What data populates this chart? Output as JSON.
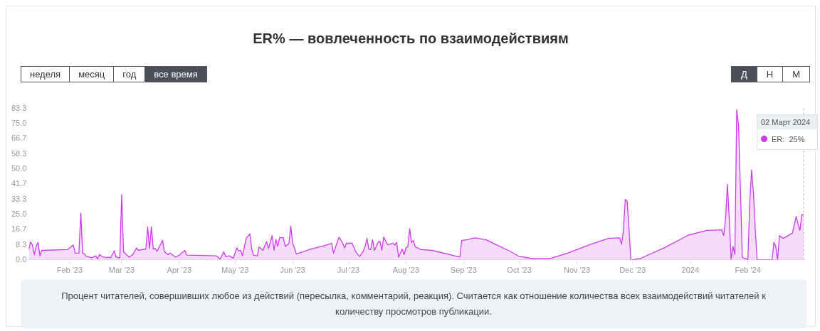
{
  "chart_data": {
    "type": "area",
    "title": "ER% — вовлеченность по взаимодействиям",
    "annotations": [
      "неделя",
      "месяц",
      "год",
      "все время",
      "Д",
      "Н",
      "М",
      "Процент читателей, совершивших любое из действий (пересылка, комментарий, реакция). Считается как отношение количества всех взаимодействий читателей к количеству просмотров публикации.",
      "02 Март 2024\nER:  25%"
    ],
    "series": [
      {
        "color": "#cc3bea",
        "x": [
          "2023-01-10",
          "2023-01-11",
          "2023-01-12",
          "2023-01-13",
          "2023-01-14",
          "2023-01-15",
          "2023-01-16",
          "2023-01-17",
          "2023-01-31",
          "2023-02-02",
          "2023-02-03",
          "2023-02-04",
          "2023-02-06",
          "2023-02-07",
          "2023-02-08",
          "2023-02-09",
          "2023-02-10",
          "2023-02-13",
          "2023-02-15",
          "2023-02-16",
          "2023-02-17",
          "2023-02-19",
          "2023-02-21",
          "2023-02-22",
          "2023-02-23",
          "2023-02-25",
          "2023-02-26",
          "2023-02-28",
          "2023-03-01",
          "2023-03-02",
          "2023-03-05",
          "2023-03-07",
          "2023-03-09",
          "2023-03-10",
          "2023-03-14",
          "2023-03-15",
          "2023-03-16",
          "2023-03-17",
          "2023-03-18",
          "2023-03-19",
          "2023-03-20",
          "2023-03-21",
          "2023-03-23",
          "2023-03-24",
          "2023-03-26",
          "2023-03-27",
          "2023-03-30",
          "2023-04-01",
          "2023-04-04",
          "2023-04-05",
          "2023-04-21",
          "2023-04-23",
          "2023-04-25",
          "2023-04-26",
          "2023-04-28",
          "2023-04-30",
          "2023-05-02",
          "2023-05-03",
          "2023-05-04",
          "2023-05-05",
          "2023-05-07",
          "2023-05-09",
          "2023-05-10",
          "2023-05-11",
          "2023-05-13",
          "2023-05-14",
          "2023-05-16",
          "2023-05-18",
          "2023-05-19",
          "2023-05-20",
          "2023-05-21",
          "2023-05-22",
          "2023-05-23",
          "2023-05-24",
          "2023-05-25",
          "2023-05-27",
          "2023-05-28",
          "2023-05-30",
          "2023-05-31",
          "2023-06-01",
          "2023-06-02",
          "2023-06-03",
          "2023-06-10",
          "2023-06-19",
          "2023-06-22",
          "2023-06-23",
          "2023-06-26",
          "2023-06-28",
          "2023-06-29",
          "2023-06-30",
          "2023-07-03",
          "2023-07-05",
          "2023-07-07",
          "2023-07-09",
          "2023-07-10",
          "2023-07-11",
          "2023-07-12",
          "2023-07-13",
          "2023-07-14",
          "2023-07-15",
          "2023-07-17",
          "2023-07-18",
          "2023-07-19",
          "2023-07-20",
          "2023-07-22",
          "2023-07-23",
          "2023-07-25",
          "2023-07-26",
          "2023-07-27",
          "2023-07-28",
          "2023-07-30",
          "2023-07-31",
          "2023-08-01",
          "2023-08-02",
          "2023-08-03",
          "2023-08-04",
          "2023-08-05",
          "2023-08-06",
          "2023-08-08",
          "2023-08-09",
          "2023-08-15",
          "2023-08-30",
          "2023-08-31",
          "2023-09-03",
          "2023-09-07",
          "2023-09-13",
          "2023-09-19",
          "2023-09-26",
          "2023-10-01",
          "2023-10-09",
          "2023-10-17",
          "2023-10-27",
          "2023-11-09",
          "2023-11-18",
          "2023-11-24",
          "2023-11-25",
          "2023-11-26",
          "2023-11-27",
          "2023-11-28",
          "2023-11-29",
          "2023-11-30",
          "2023-12-01",
          "2023-12-05",
          "2023-12-18",
          "2023-12-31",
          "2024-01-10",
          "2024-01-18",
          "2024-01-19",
          "2024-01-20",
          "2024-01-21",
          "2024-01-22",
          "2024-01-23",
          "2024-01-24",
          "2024-01-25",
          "2024-01-26",
          "2024-01-27",
          "2024-01-28",
          "2024-01-29",
          "2024-01-30",
          "2024-01-31",
          "2024-02-01",
          "2024-02-02",
          "2024-02-03",
          "2024-02-04",
          "2024-02-05",
          "2024-02-06",
          "2024-02-14",
          "2024-02-15",
          "2024-02-16",
          "2024-02-17",
          "2024-02-18",
          "2024-02-20",
          "2024-02-25",
          "2024-02-27",
          "2024-02-28",
          "2024-02-29",
          "2024-03-01",
          "2024-03-02"
        ],
        "values": [
          5.6,
          9.9,
          8.1,
          2.9,
          7.4,
          9.6,
          2.2,
          5.2,
          5.6,
          7.4,
          8.1,
          3.7,
          3.7,
          25.8,
          3.7,
          3.3,
          1.8,
          1.2,
          2.2,
          0.4,
          2.9,
          1.5,
          1.2,
          1.5,
          1.0,
          4.9,
          1.5,
          1.0,
          35.8,
          4.4,
          1.5,
          2.9,
          6.5,
          5.2,
          5.9,
          18.1,
          6.2,
          18.1,
          5.9,
          6.3,
          4.7,
          6.6,
          10.8,
          4.4,
          2.9,
          3.7,
          1.5,
          2.6,
          5.2,
          2.6,
          2.2,
          0.4,
          4.4,
          1.8,
          2.2,
          0.9,
          6.6,
          4.9,
          5.2,
          2.2,
          11.8,
          14.3,
          5.9,
          2.5,
          2.2,
          7.1,
          5.2,
          10.0,
          6.2,
          9.6,
          13.3,
          5.2,
          11.3,
          7.4,
          12.2,
          12.2,
          7.4,
          8.8,
          18.6,
          9.1,
          6.6,
          3.2,
          5.6,
          8.1,
          9.1,
          3.7,
          12.5,
          9.1,
          6.6,
          9.1,
          9.1,
          4.4,
          1.8,
          4.7,
          7.4,
          11.8,
          5.9,
          5.6,
          11.1,
          5.2,
          9.6,
          10.3,
          5.2,
          12.5,
          8.5,
          8.5,
          9.1,
          8.1,
          9.6,
          1.5,
          5.9,
          2.9,
          6.6,
          7.4,
          17.2,
          9.6,
          10.6,
          7.1,
          6.2,
          5.6,
          5.2,
          1.5,
          10.6,
          11.1,
          12.1,
          11.1,
          8.1,
          4.7,
          1.8,
          0.6,
          0.6,
          3.7,
          8.8,
          11.8,
          12.1,
          8.5,
          16.2,
          33.2,
          32.4,
          17.7,
          0,
          0,
          0.7,
          6.6,
          13.6,
          16.2,
          16.5,
          13.3,
          22.8,
          41.6,
          22.1,
          0.3,
          7.4,
          2.9,
          82.5,
          73.7,
          38.3,
          1.5,
          0.7,
          0.7,
          0,
          31.0,
          49.4,
          36.9,
          16.2,
          0,
          0,
          9.6,
          7.4,
          0,
          13.3,
          11.8,
          14.7,
          23.9,
          19.5,
          16.2,
          24.8,
          25
        ]
      }
    ],
    "xlim": [
      "2023-01-10",
      "2024-03-02"
    ],
    "xticks": [
      {
        "value": "2023-02-01",
        "label": "Feb '23"
      },
      {
        "value": "2023-03-01",
        "label": "Mar '23"
      },
      {
        "value": "2023-04-01",
        "label": "Apr '23"
      },
      {
        "value": "2023-05-01",
        "label": "May '23"
      },
      {
        "value": "2023-06-01",
        "label": "Jun '23"
      },
      {
        "value": "2023-07-01",
        "label": "Jul '23"
      },
      {
        "value": "2023-08-01",
        "label": "Aug '23"
      },
      {
        "value": "2023-09-01",
        "label": "Sep '23"
      },
      {
        "value": "2023-10-01",
        "label": "Oct '23"
      },
      {
        "value": "2023-11-01",
        "label": "Nov '23"
      },
      {
        "value": "2023-12-01",
        "label": "Dec '23"
      },
      {
        "value": "2024-01-01",
        "label": "2024"
      },
      {
        "value": "2024-02-01",
        "label": "Feb '24"
      }
    ],
    "ylim": [
      0,
      83.33
    ],
    "yticks": [
      {
        "value": 0,
        "label": "0.0"
      },
      {
        "value": 8.33,
        "label": "8.3"
      },
      {
        "value": 16.67,
        "label": "16.7"
      },
      {
        "value": 25,
        "label": "25.0"
      },
      {
        "value": 33.33,
        "label": "33.3"
      },
      {
        "value": 41.67,
        "label": "41.7"
      },
      {
        "value": 50,
        "label": "50.0"
      },
      {
        "value": 58.33,
        "label": "58.3"
      },
      {
        "value": 66.67,
        "label": "66.7"
      },
      {
        "value": 75,
        "label": "75.0"
      },
      {
        "value": 83.33,
        "label": "83.3"
      }
    ],
    "grid": false,
    "legend": false,
    "marker": "none",
    "line_style": "solid"
  }
}
